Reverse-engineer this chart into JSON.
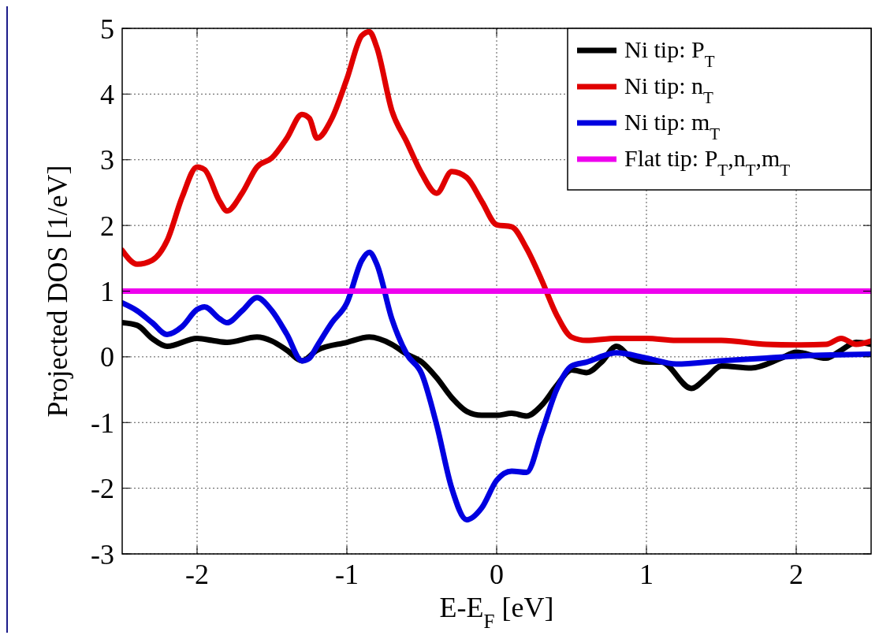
{
  "chart_data": {
    "type": "line",
    "xlabel": "E-E$_{F}$ [eV]",
    "ylabel": "Projected DOS [1/eV]",
    "xlim": [
      -2.5,
      2.5
    ],
    "ylim": [
      -3,
      5
    ],
    "xticks": [
      -2,
      -1,
      0,
      1,
      2
    ],
    "yticks": [
      -3,
      -2,
      -1,
      0,
      1,
      2,
      3,
      4,
      5
    ],
    "grid": true,
    "legend": "top right",
    "line_style": "solid",
    "marker": "none",
    "series": [
      {
        "name": "Ni tip: P$_{T}$",
        "color": "#000000",
        "x": [
          -2.5,
          -2.4,
          -2.3,
          -2.2,
          -2.0,
          -1.9,
          -1.8,
          -1.6,
          -1.5,
          -1.4,
          -1.3,
          -1.2,
          -1.0,
          -0.85,
          -0.7,
          -0.6,
          -0.5,
          -0.4,
          -0.3,
          -0.2,
          -0.1,
          0.0,
          0.1,
          0.2,
          0.3,
          0.4,
          0.5,
          0.6,
          0.7,
          0.8,
          0.9,
          1.0,
          1.1,
          1.3,
          1.4,
          1.5,
          1.7,
          1.9,
          2.0,
          2.2,
          2.3,
          2.4,
          2.5
        ],
        "values": [
          0.52,
          0.48,
          0.28,
          0.16,
          0.28,
          0.25,
          0.22,
          0.3,
          0.24,
          0.1,
          -0.06,
          0.1,
          0.22,
          0.3,
          0.19,
          0.04,
          -0.08,
          -0.32,
          -0.62,
          -0.83,
          -0.89,
          -0.89,
          -0.86,
          -0.9,
          -0.74,
          -0.44,
          -0.2,
          -0.24,
          -0.08,
          0.16,
          -0.02,
          -0.08,
          -0.08,
          -0.48,
          -0.32,
          -0.14,
          -0.17,
          -0.02,
          0.07,
          -0.02,
          0.1,
          0.22,
          0.19
        ]
      },
      {
        "name": "Ni tip: n$_{T}$",
        "color": "#e00000",
        "x": [
          -2.5,
          -2.4,
          -2.3,
          -2.2,
          -2.1,
          -2.0,
          -1.95,
          -1.85,
          -1.8,
          -1.7,
          -1.6,
          -1.5,
          -1.4,
          -1.3,
          -1.25,
          -1.2,
          -1.1,
          -1.0,
          -0.9,
          -0.85,
          -0.8,
          -0.7,
          -0.6,
          -0.5,
          -0.4,
          -0.3,
          -0.2,
          -0.1,
          0.0,
          0.1,
          0.2,
          0.3,
          0.4,
          0.5,
          0.6,
          0.8,
          1.0,
          1.2,
          1.5,
          1.8,
          2.0,
          2.2,
          2.3,
          2.4,
          2.5
        ],
        "values": [
          1.62,
          1.41,
          1.47,
          1.77,
          2.43,
          2.89,
          2.85,
          2.37,
          2.22,
          2.49,
          2.89,
          3.03,
          3.33,
          3.69,
          3.63,
          3.33,
          3.63,
          4.23,
          4.89,
          4.95,
          4.71,
          3.75,
          3.27,
          2.79,
          2.49,
          2.82,
          2.73,
          2.37,
          2.01,
          1.98,
          1.65,
          1.17,
          0.64,
          0.3,
          0.25,
          0.28,
          0.28,
          0.25,
          0.25,
          0.19,
          0.18,
          0.19,
          0.28,
          0.19,
          0.24
        ]
      },
      {
        "name": "Ni tip: m$_{T}$",
        "color": "#0000e0",
        "x": [
          -2.5,
          -2.4,
          -2.3,
          -2.2,
          -2.1,
          -2.0,
          -1.95,
          -1.85,
          -1.8,
          -1.7,
          -1.6,
          -1.5,
          -1.4,
          -1.3,
          -1.25,
          -1.2,
          -1.1,
          -1.0,
          -0.9,
          -0.85,
          -0.8,
          -0.7,
          -0.6,
          -0.5,
          -0.4,
          -0.3,
          -0.2,
          -0.1,
          0.0,
          0.1,
          0.2,
          0.3,
          0.4,
          0.5,
          0.6,
          0.8,
          1.0,
          1.2,
          1.5,
          1.8,
          2.0,
          2.5
        ],
        "values": [
          0.82,
          0.7,
          0.52,
          0.34,
          0.46,
          0.72,
          0.76,
          0.58,
          0.52,
          0.7,
          0.9,
          0.7,
          0.34,
          -0.06,
          -0.02,
          0.16,
          0.52,
          0.82,
          1.47,
          1.59,
          1.41,
          0.58,
          0.04,
          -0.26,
          -1.04,
          -2.0,
          -2.48,
          -2.3,
          -1.88,
          -1.74,
          -1.76,
          -1.16,
          -0.5,
          -0.14,
          -0.08,
          0.06,
          -0.02,
          -0.11,
          -0.06,
          -0.02,
          0.01,
          0.04
        ]
      },
      {
        "name": "Flat tip: P$_{T}$,n$_{T}$,m$_{T}$",
        "color": "#ee00ee",
        "x": [
          -2.5,
          2.5
        ],
        "values": [
          1,
          1
        ]
      }
    ]
  }
}
